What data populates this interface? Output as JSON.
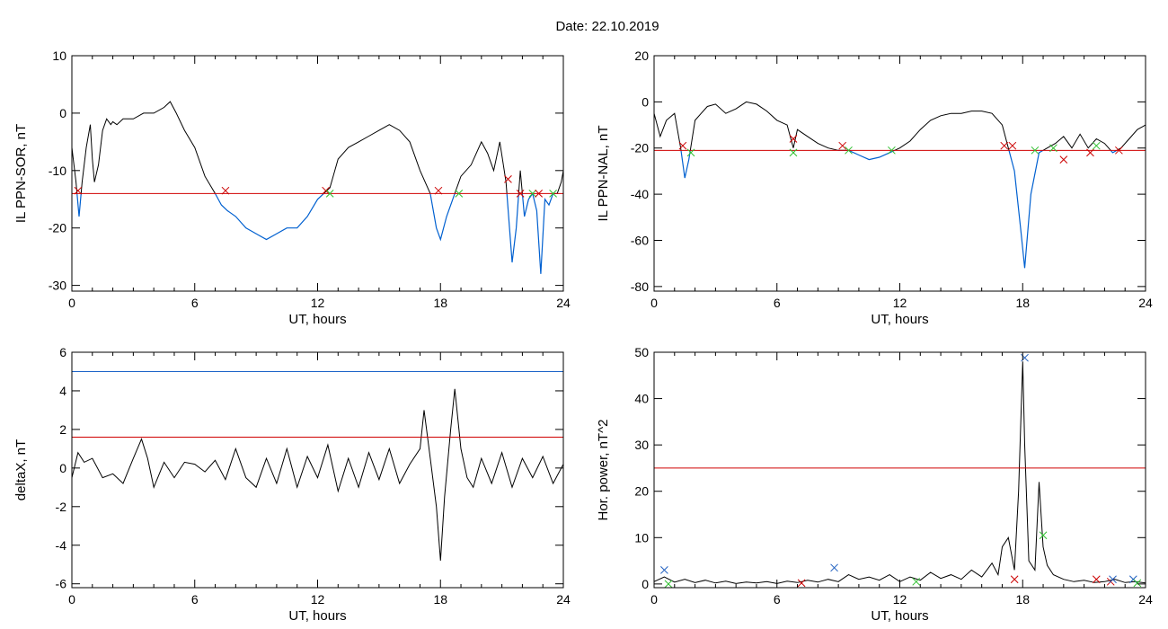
{
  "page": {
    "title": "Date:  22.10.2019"
  },
  "colors": {
    "trace": "#000000",
    "below": "#0060d0",
    "threshold_red": "#d00000",
    "threshold_blue": "#1e64c8",
    "marker_red": "#cc0000",
    "marker_green": "#30c030",
    "marker_blue": "#2060c0"
  },
  "chart_data": [
    {
      "type": "line",
      "ylabel": "IL PPN-SOR, nT",
      "xlabel": "UT, hours",
      "xlim": [
        0,
        24
      ],
      "ylim": [
        -31,
        10
      ],
      "xticks": [
        "0",
        "6",
        "12",
        "18",
        "24"
      ],
      "yticks": [
        "10",
        "0",
        "-10",
        "-20",
        "-30"
      ],
      "threshold": -14,
      "series": [
        {
          "x": [
            0,
            0.2,
            0.35,
            0.5,
            0.7,
            0.9,
            1.0,
            1.1,
            1.3,
            1.5,
            1.7,
            1.9,
            2.0,
            2.2,
            2.5,
            3,
            3.5,
            4,
            4.5,
            4.8,
            5.1,
            5.5,
            6,
            6.5,
            7,
            7.3,
            7.6,
            8,
            8.5,
            9,
            9.5,
            10,
            10.5,
            11,
            11.5,
            12,
            12.3,
            12.6,
            13,
            13.5,
            14,
            14.5,
            15,
            15.5,
            16,
            16.5,
            17,
            17.5,
            17.8,
            18.0,
            18.3,
            18.6,
            19,
            19.5,
            20,
            20.3,
            20.6,
            20.9,
            21.2,
            21.5,
            21.7,
            21.9,
            22.1,
            22.3,
            22.5,
            22.7,
            22.9,
            23.1,
            23.3,
            23.5,
            23.7,
            23.9,
            24
          ],
          "y": [
            -6,
            -12,
            -18,
            -12,
            -6,
            -2,
            -8,
            -12,
            -9,
            -3,
            -1,
            -2,
            -1.5,
            -2,
            -1,
            -1,
            0,
            0,
            1,
            2,
            0,
            -3,
            -6,
            -11,
            -14,
            -16,
            -17,
            -18,
            -20,
            -21,
            -22,
            -21,
            -20,
            -20,
            -18,
            -15,
            -14,
            -13,
            -8,
            -6,
            -5,
            -4,
            -3,
            -2,
            -3,
            -5,
            -10,
            -14,
            -20,
            -22,
            -18,
            -15,
            -11,
            -9,
            -5,
            -7,
            -10,
            -5,
            -12,
            -26,
            -20,
            -10,
            -18,
            -15,
            -14,
            -17,
            -28,
            -15,
            -16,
            -14,
            -14,
            -12,
            -10
          ]
        }
      ],
      "markers": [
        {
          "x": 0.3,
          "y": -13.5,
          "color": "red"
        },
        {
          "x": 7.5,
          "y": -13.5,
          "color": "red"
        },
        {
          "x": 12.4,
          "y": -13.5,
          "color": "red"
        },
        {
          "x": 12.6,
          "y": -14,
          "color": "green"
        },
        {
          "x": 17.9,
          "y": -13.5,
          "color": "red"
        },
        {
          "x": 18.9,
          "y": -14,
          "color": "green"
        },
        {
          "x": 21.3,
          "y": -11.5,
          "color": "red"
        },
        {
          "x": 21.9,
          "y": -14,
          "color": "red"
        },
        {
          "x": 22.5,
          "y": -14,
          "color": "green"
        },
        {
          "x": 22.8,
          "y": -14,
          "color": "red"
        },
        {
          "x": 23.5,
          "y": -14,
          "color": "green"
        }
      ]
    },
    {
      "type": "line",
      "ylabel": "IL PPN-NAL, nT",
      "xlabel": "UT, hours",
      "xlim": [
        0,
        24
      ],
      "ylim": [
        -82,
        20
      ],
      "xticks": [
        "0",
        "6",
        "12",
        "18",
        "24"
      ],
      "yticks": [
        "20",
        "0",
        "-20",
        "-40",
        "-60",
        "-80"
      ],
      "threshold": -21,
      "series": [
        {
          "x": [
            0,
            0.3,
            0.6,
            1.0,
            1.3,
            1.5,
            1.7,
            2.0,
            2.3,
            2.6,
            3,
            3.5,
            4,
            4.5,
            5,
            5.5,
            6,
            6.5,
            6.8,
            7.0,
            7.5,
            8,
            8.5,
            9,
            9.5,
            10,
            10.5,
            11,
            11.5,
            12,
            12.5,
            13,
            13.5,
            14,
            14.5,
            15,
            15.5,
            16,
            16.5,
            17,
            17.3,
            17.6,
            17.9,
            18.1,
            18.4,
            18.8,
            19.2,
            19.6,
            20,
            20.4,
            20.8,
            21.2,
            21.6,
            22,
            22.4,
            22.8,
            23.2,
            23.6,
            24
          ],
          "y": [
            -5,
            -15,
            -8,
            -5,
            -20,
            -33,
            -25,
            -8,
            -5,
            -2,
            -1,
            -5,
            -3,
            0,
            -1,
            -4,
            -8,
            -10,
            -20,
            -12,
            -15,
            -18,
            -20,
            -21,
            -21,
            -23,
            -25,
            -24,
            -22,
            -20,
            -17,
            -12,
            -8,
            -6,
            -5,
            -5,
            -4,
            -4,
            -5,
            -10,
            -20,
            -30,
            -55,
            -72,
            -40,
            -22,
            -20,
            -18,
            -15,
            -20,
            -14,
            -20,
            -16,
            -18,
            -22,
            -20,
            -16,
            -12,
            -10
          ]
        }
      ],
      "markers": [
        {
          "x": 1.4,
          "y": -19,
          "color": "red"
        },
        {
          "x": 1.8,
          "y": -22,
          "color": "green"
        },
        {
          "x": 6.8,
          "y": -16,
          "color": "red"
        },
        {
          "x": 6.8,
          "y": -22,
          "color": "green"
        },
        {
          "x": 9.2,
          "y": -19,
          "color": "red"
        },
        {
          "x": 9.5,
          "y": -21,
          "color": "green"
        },
        {
          "x": 11.6,
          "y": -21,
          "color": "green"
        },
        {
          "x": 17.1,
          "y": -19,
          "color": "red"
        },
        {
          "x": 17.5,
          "y": -19,
          "color": "red"
        },
        {
          "x": 18.6,
          "y": -21,
          "color": "green"
        },
        {
          "x": 19.5,
          "y": -20,
          "color": "green"
        },
        {
          "x": 20.0,
          "y": -25,
          "color": "red"
        },
        {
          "x": 21.3,
          "y": -22,
          "color": "red"
        },
        {
          "x": 21.6,
          "y": -19,
          "color": "green"
        },
        {
          "x": 22.7,
          "y": -21,
          "color": "red"
        }
      ]
    },
    {
      "type": "line",
      "ylabel": "deltaX, nT",
      "xlabel": "UT, hours",
      "xlim": [
        0,
        24
      ],
      "ylim": [
        -6.2,
        6
      ],
      "xticks": [
        "0",
        "6",
        "12",
        "18",
        "24"
      ],
      "yticks": [
        "6",
        "4",
        "2",
        "0",
        "-2",
        "-4",
        "-6"
      ],
      "threshold": 1.6,
      "threshold2": 5.0,
      "series": [
        {
          "x": [
            0,
            0.3,
            0.6,
            1.0,
            1.5,
            2.0,
            2.5,
            3.0,
            3.4,
            3.7,
            4.0,
            4.5,
            5.0,
            5.5,
            6,
            6.5,
            7,
            7.5,
            8,
            8.5,
            9,
            9.5,
            10,
            10.5,
            11,
            11.5,
            12,
            12.5,
            13,
            13.5,
            14,
            14.5,
            15,
            15.5,
            16,
            16.5,
            17,
            17.2,
            17.5,
            17.8,
            18.0,
            18.2,
            18.5,
            18.7,
            19.0,
            19.3,
            19.6,
            20,
            20.5,
            21,
            21.5,
            22,
            22.5,
            23,
            23.5,
            24
          ],
          "y": [
            -0.5,
            0.8,
            0.3,
            0.5,
            -0.5,
            -0.3,
            -0.8,
            0.5,
            1.5,
            0.5,
            -1.0,
            0.3,
            -0.5,
            0.3,
            0.2,
            -0.2,
            0.4,
            -0.6,
            1.0,
            -0.5,
            -1.0,
            0.5,
            -0.8,
            1.0,
            -1.0,
            0.6,
            -0.5,
            1.2,
            -1.2,
            0.5,
            -1.0,
            0.8,
            -0.6,
            1.0,
            -0.8,
            0.2,
            1.0,
            3.0,
            0.5,
            -2.0,
            -4.8,
            -1.5,
            2.0,
            4.1,
            1.0,
            -0.5,
            -1.0,
            0.5,
            -0.8,
            0.8,
            -1.0,
            0.5,
            -0.5,
            0.6,
            -0.8,
            0.2
          ]
        }
      ],
      "markers": []
    },
    {
      "type": "line",
      "ylabel": "Hor. power, nT^2",
      "xlabel": "UT, hours",
      "xlim": [
        0,
        24
      ],
      "ylim": [
        -0.8,
        50
      ],
      "xticks": [
        "0",
        "6",
        "12",
        "18",
        "24"
      ],
      "yticks": [
        "50",
        "40",
        "30",
        "20",
        "10",
        "0"
      ],
      "threshold": 25,
      "series": [
        {
          "x": [
            0,
            0.5,
            1,
            1.5,
            2,
            2.5,
            3,
            3.5,
            4,
            4.5,
            5,
            5.5,
            6,
            6.5,
            7,
            7.5,
            8,
            8.5,
            9,
            9.5,
            10,
            10.5,
            11,
            11.5,
            12,
            12.5,
            13,
            13.5,
            14,
            14.5,
            15,
            15.5,
            16,
            16.5,
            16.8,
            17.0,
            17.3,
            17.6,
            17.8,
            18.0,
            18.1,
            18.3,
            18.6,
            18.8,
            19.0,
            19.2,
            19.5,
            20,
            20.5,
            21,
            21.5,
            22,
            22.5,
            23,
            23.5,
            24
          ],
          "y": [
            0.5,
            1.5,
            0.4,
            1.0,
            0.3,
            0.8,
            0.2,
            0.6,
            0.1,
            0.4,
            0.2,
            0.5,
            0.1,
            0.6,
            0.3,
            0.8,
            0.4,
            1.0,
            0.5,
            2.0,
            1.0,
            1.5,
            0.8,
            2.0,
            0.5,
            1.5,
            0.8,
            2.5,
            1.2,
            2.0,
            1.0,
            3.0,
            1.5,
            4.5,
            2.0,
            8.0,
            10.0,
            3.0,
            20.0,
            48.0,
            30.0,
            5.0,
            3.0,
            22.0,
            8.0,
            4.0,
            2.0,
            1.0,
            0.5,
            0.8,
            0.3,
            0.5,
            1.0,
            0.3,
            0.5,
            0.2
          ]
        }
      ],
      "markers": [
        {
          "x": 0.5,
          "y": 3.0,
          "color": "blue"
        },
        {
          "x": 0.7,
          "y": 0.0,
          "color": "green"
        },
        {
          "x": 7.2,
          "y": 0.2,
          "color": "red"
        },
        {
          "x": 8.8,
          "y": 3.5,
          "color": "blue"
        },
        {
          "x": 12.8,
          "y": 0.5,
          "color": "green"
        },
        {
          "x": 17.6,
          "y": 1.0,
          "color": "red"
        },
        {
          "x": 18.1,
          "y": 48.8,
          "color": "blue"
        },
        {
          "x": 19.0,
          "y": 10.5,
          "color": "green"
        },
        {
          "x": 21.6,
          "y": 1.0,
          "color": "red"
        },
        {
          "x": 22.3,
          "y": 0.5,
          "color": "red"
        },
        {
          "x": 22.4,
          "y": 1.0,
          "color": "blue"
        },
        {
          "x": 23.4,
          "y": 1.0,
          "color": "blue"
        },
        {
          "x": 23.6,
          "y": 0.2,
          "color": "green"
        }
      ]
    }
  ]
}
